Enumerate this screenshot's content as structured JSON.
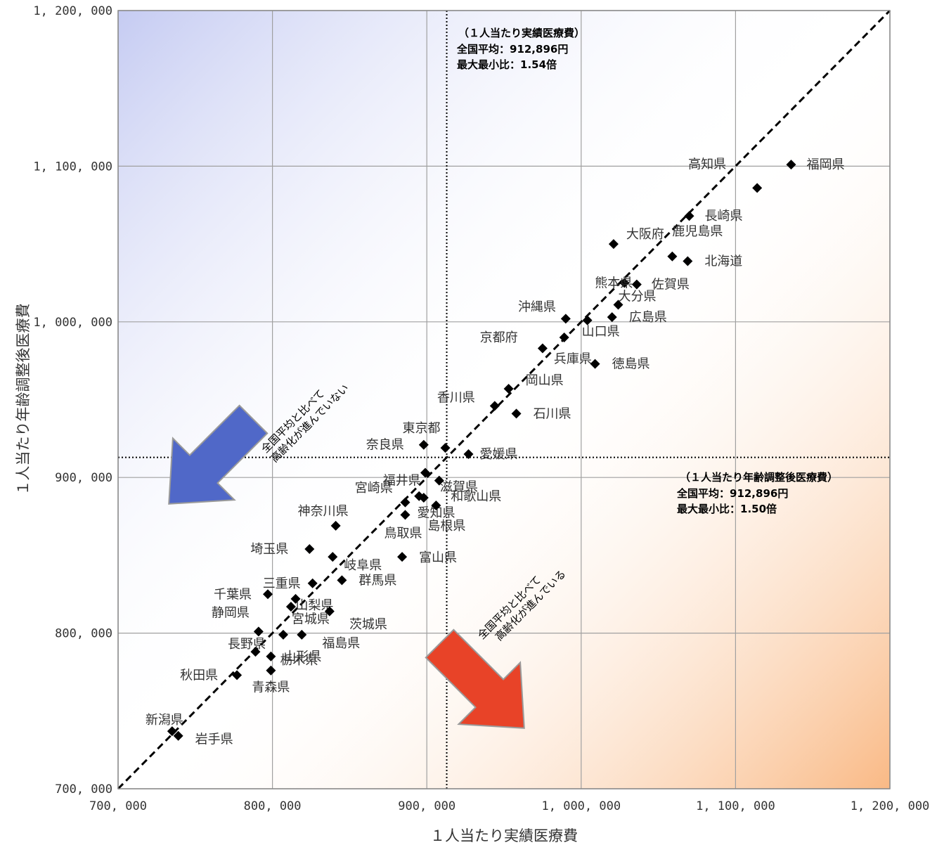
{
  "chart_data": {
    "type": "scatter",
    "xlabel": "１人当たり実績医療費",
    "ylabel": "１人当たり年齢調整後医療費",
    "xlim": [
      700000,
      1200000
    ],
    "ylim": [
      700000,
      1200000
    ],
    "x_ticks": [
      700000,
      800000,
      900000,
      1000000,
      1100000,
      1200000
    ],
    "y_ticks": [
      700000,
      800000,
      900000,
      1000000,
      1100000,
      1200000
    ],
    "x_tick_labels": [
      "700, 000",
      "800, 000",
      "900, 000",
      "1, 000, 000",
      "1, 100, 000",
      "1, 200, 000"
    ],
    "y_tick_labels": [
      "700, 000",
      "800, 000",
      "900, 000",
      "1, 000, 000",
      "1, 100, 000",
      "1, 200, 000"
    ],
    "grid": true,
    "reference_lines": {
      "diagonal": "y = x",
      "vertical_x": 912896,
      "horizontal_y": 912896
    },
    "annotations": {
      "actual": [
        "（１人当たり実績医療費）",
        "全国平均：912,896円",
        "最大最小比：1.54倍"
      ],
      "adjusted": [
        "（１人当たり年齢調整後医療費）",
        "全国平均：912,896円",
        "最大最小比：1.50倍"
      ],
      "upper_arrow": [
        "全国平均と比べて",
        "高齢化が進んでいない"
      ],
      "lower_arrow": [
        "全国平均と比べて",
        "高齢化が進んでいる"
      ]
    },
    "colors": {
      "upper_region": "#c5cbf2",
      "lower_region": "#f9b985",
      "upper_arrow": "#5068c8",
      "lower_arrow": "#e84328",
      "marker": "#000000"
    },
    "points": [
      {
        "name": "福岡県",
        "x": 1136000,
        "y": 1101000
      },
      {
        "name": "高知県",
        "x": 1114000,
        "y": 1086000
      },
      {
        "name": "長崎県",
        "x": 1070000,
        "y": 1068000
      },
      {
        "name": "大阪府",
        "x": 1021000,
        "y": 1050000
      },
      {
        "name": "鹿児島県",
        "x": 1059000,
        "y": 1042000
      },
      {
        "name": "北海道",
        "x": 1069000,
        "y": 1039000
      },
      {
        "name": "熊本県",
        "x": 1028000,
        "y": 1025000
      },
      {
        "name": "佐賀県",
        "x": 1036000,
        "y": 1024000
      },
      {
        "name": "大分県",
        "x": 1024000,
        "y": 1011000
      },
      {
        "name": "沖縄県",
        "x": 990000,
        "y": 1002000
      },
      {
        "name": "広島県",
        "x": 1020000,
        "y": 1003000
      },
      {
        "name": "山口県",
        "x": 1004000,
        "y": 1001000
      },
      {
        "name": "京都府",
        "x": 989000,
        "y": 990000
      },
      {
        "name": "兵庫県",
        "x": 975000,
        "y": 983000
      },
      {
        "name": "徳島県",
        "x": 1009000,
        "y": 973000
      },
      {
        "name": "岡山県",
        "x": 953000,
        "y": 957000
      },
      {
        "name": "香川県",
        "x": 944000,
        "y": 946000
      },
      {
        "name": "石川県",
        "x": 958000,
        "y": 941000
      },
      {
        "name": "奈良県",
        "x": 898000,
        "y": 921000
      },
      {
        "name": "東京都",
        "x": 912000,
        "y": 919000
      },
      {
        "name": "愛媛県",
        "x": 927000,
        "y": 915000
      },
      {
        "name": "滋賀県",
        "x": 899000,
        "y": 903000
      },
      {
        "name": "福井県",
        "x": 908000,
        "y": 898000
      },
      {
        "name": "和歌山県",
        "x": 895000,
        "y": 888000
      },
      {
        "name": "宮崎県",
        "x": 898000,
        "y": 887000
      },
      {
        "name": "愛知県",
        "x": 886000,
        "y": 884000
      },
      {
        "name": "島根県",
        "x": 906000,
        "y": 882000
      },
      {
        "name": "鳥取県",
        "x": 886000,
        "y": 876000
      },
      {
        "name": "神奈川県",
        "x": 841000,
        "y": 869000
      },
      {
        "name": "埼玉県",
        "x": 824000,
        "y": 854000
      },
      {
        "name": "岐阜県",
        "x": 839000,
        "y": 849000
      },
      {
        "name": "富山県",
        "x": 884000,
        "y": 849000
      },
      {
        "name": "群馬県",
        "x": 845000,
        "y": 834000
      },
      {
        "name": "三重県",
        "x": 826000,
        "y": 832000
      },
      {
        "name": "千葉県",
        "x": 797000,
        "y": 825000
      },
      {
        "name": "山梨県",
        "x": 815000,
        "y": 822000
      },
      {
        "name": "茨城県",
        "x": 812000,
        "y": 817000
      },
      {
        "name": "宮城県",
        "x": 837000,
        "y": 814000
      },
      {
        "name": "静岡県",
        "x": 791000,
        "y": 801000
      },
      {
        "name": "長野県",
        "x": 807000,
        "y": 799000
      },
      {
        "name": "福島県",
        "x": 819000,
        "y": 799000
      },
      {
        "name": "栃木県",
        "x": 789000,
        "y": 788000
      },
      {
        "name": "山形県",
        "x": 799000,
        "y": 785000
      },
      {
        "name": "青森県",
        "x": 799000,
        "y": 776000
      },
      {
        "name": "秋田県",
        "x": 777000,
        "y": 773000
      },
      {
        "name": "新潟県",
        "x": 735000,
        "y": 737000
      },
      {
        "name": "岩手県",
        "x": 739000,
        "y": 734000
      }
    ]
  }
}
